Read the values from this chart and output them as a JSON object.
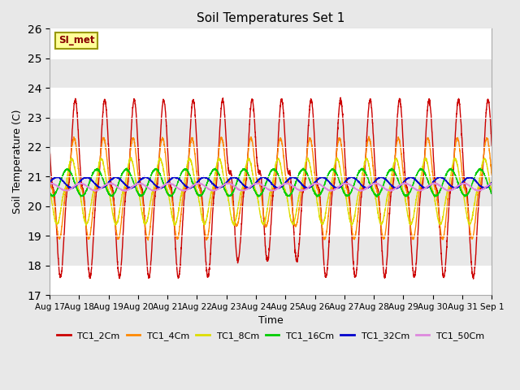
{
  "title": "Soil Temperatures Set 1",
  "xlabel": "Time",
  "ylabel": "Soil Temperature (C)",
  "ylim": [
    17.0,
    26.0
  ],
  "yticks": [
    17.0,
    18.0,
    19.0,
    20.0,
    21.0,
    22.0,
    23.0,
    24.0,
    25.0,
    26.0
  ],
  "series_labels": [
    "TC1_2Cm",
    "TC1_4Cm",
    "TC1_8Cm",
    "TC1_16Cm",
    "TC1_32Cm",
    "TC1_50Cm"
  ],
  "series_colors": [
    "#cc0000",
    "#ff8800",
    "#dddd00",
    "#00cc00",
    "#0000cc",
    "#dd88dd"
  ],
  "annotation_text": "SI_met",
  "bg_color": "#e8e8e8",
  "plot_bg_color": "#e8e8e8",
  "t_start": 17,
  "t_end": 32,
  "xtick_positions": [
    17,
    18,
    19,
    20,
    21,
    22,
    23,
    24,
    25,
    26,
    27,
    28,
    29,
    30,
    31,
    32
  ],
  "xtick_labels": [
    "Aug 17",
    "Aug 18",
    "Aug 19",
    "Aug 20",
    "Aug 21",
    "Aug 22",
    "Aug 23",
    "Aug 24",
    "Aug 25",
    "Aug 26",
    "Aug 27",
    "Aug 28",
    "Aug 29",
    "Aug 30",
    "Aug 31",
    "Sep 1"
  ]
}
